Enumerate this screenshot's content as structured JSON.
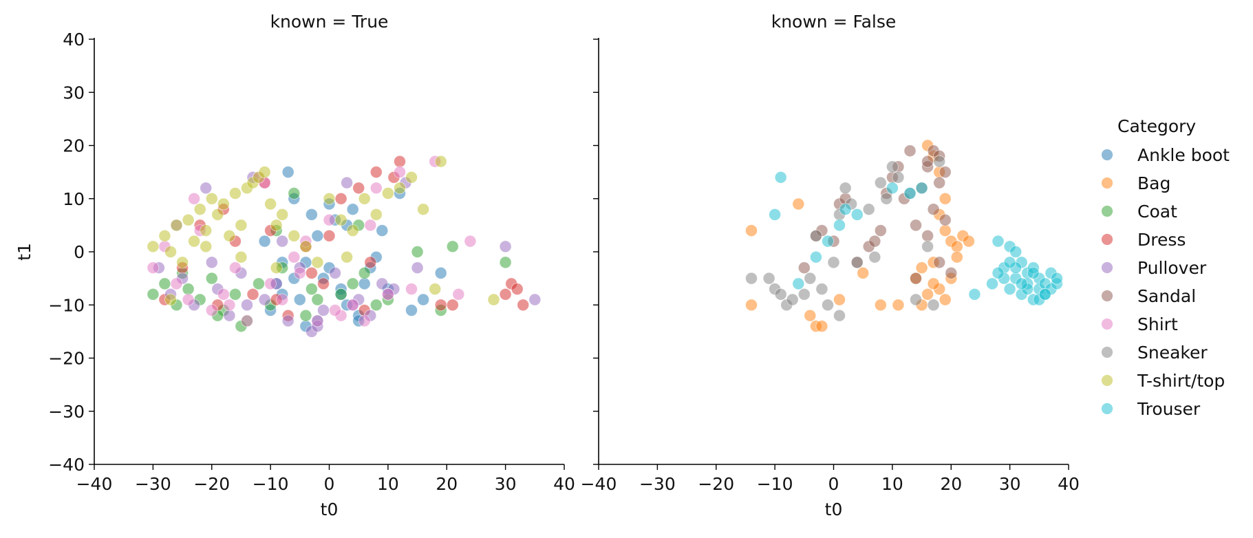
{
  "chart_data": [
    {
      "type": "scatter",
      "title": "known = True",
      "xlabel": "t0",
      "ylabel": "t1",
      "xlim": [
        -40,
        40
      ],
      "ylim": [
        -40,
        40
      ],
      "xticks": [
        "−40",
        "−30",
        "−20",
        "−10",
        "0",
        "10",
        "20",
        "30",
        "40"
      ],
      "yticks": [
        "−40",
        "−30",
        "−20",
        "−10",
        "0",
        "10",
        "20",
        "30",
        "40"
      ],
      "grid": false,
      "series": [
        {
          "name": "Ankle boot",
          "color": "#1f77b4",
          "x": [
            -9,
            -8,
            -10,
            -5,
            -4,
            -2,
            -1,
            0,
            2,
            3,
            5,
            -6,
            -3,
            1,
            4,
            7,
            -7,
            -2,
            3,
            8,
            16,
            19,
            12,
            6,
            -11,
            -4,
            2,
            -8,
            0,
            5,
            10,
            -6,
            9,
            14
          ],
          "y": [
            -6,
            -8,
            -11,
            -9,
            -2,
            -13,
            -5,
            -3,
            -7,
            -10,
            -12,
            10,
            7,
            6,
            8,
            -3,
            15,
            3,
            5,
            -1,
            -9,
            -4,
            11,
            -6,
            2,
            -14,
            -8,
            -2,
            9,
            -13,
            -7,
            -5,
            4,
            -11
          ]
        },
        {
          "name": "Coat",
          "color": "#2ca02c",
          "x": [
            -30,
            -28,
            -26,
            -24,
            -22,
            -20,
            -18,
            -16,
            -14,
            -12,
            -10,
            -8,
            -6,
            -4,
            -2,
            2,
            4,
            6,
            8,
            15,
            19,
            21,
            30,
            -25,
            -19,
            -15,
            -9,
            -3,
            5,
            10
          ],
          "y": [
            -8,
            -6,
            -10,
            -7,
            -9,
            -5,
            -11,
            -8,
            -13,
            -6,
            -10,
            -3,
            11,
            -12,
            -9,
            -8,
            -6,
            -4,
            -10,
            0,
            -11,
            1,
            -2,
            -4,
            -12,
            -14,
            4,
            -7,
            5,
            -9
          ]
        },
        {
          "name": "Dress",
          "color": "#d62728",
          "x": [
            -28,
            -25,
            -22,
            -19,
            -16,
            -13,
            -10,
            -7,
            -4,
            -1,
            2,
            5,
            8,
            12,
            19,
            21,
            30,
            31,
            32,
            33,
            -9,
            -3,
            6,
            11,
            -18,
            -11,
            0,
            7
          ],
          "y": [
            -9,
            -3,
            5,
            -10,
            2,
            -8,
            4,
            -12,
            1,
            -6,
            10,
            12,
            15,
            17,
            -10,
            -10,
            -8,
            -6,
            -7,
            -10,
            -9,
            -4,
            -11,
            14,
            8,
            13,
            3,
            -2
          ]
        },
        {
          "name": "Pullover",
          "color": "#9467bd",
          "x": [
            -29,
            -27,
            -25,
            -23,
            -21,
            -19,
            -17,
            -15,
            -13,
            -11,
            -9,
            -7,
            -5,
            -3,
            -1,
            1,
            3,
            5,
            7,
            9,
            11,
            13,
            15,
            30,
            35,
            -26,
            -20,
            -14,
            -8,
            -2,
            4,
            10
          ],
          "y": [
            -3,
            -8,
            -5,
            -10,
            12,
            -7,
            -12,
            -4,
            14,
            -9,
            -6,
            -13,
            -3,
            -15,
            -11,
            -4,
            13,
            -9,
            -12,
            -6,
            -7,
            13,
            -3,
            1,
            -9,
            5,
            -2,
            -10,
            2,
            -14,
            -10,
            -8
          ]
        },
        {
          "name": "Shirt",
          "color": "#e377c2",
          "x": [
            -30,
            -28,
            -26,
            -24,
            -22,
            -20,
            -18,
            -16,
            -14,
            -12,
            -10,
            -8,
            -6,
            -4,
            -2,
            0,
            2,
            4,
            6,
            8,
            10,
            12,
            14,
            18,
            22,
            24,
            -23,
            -17,
            -11,
            -5,
            1,
            7
          ],
          "y": [
            -3,
            1,
            -6,
            -9,
            4,
            -11,
            -8,
            -3,
            -13,
            14,
            -6,
            -9,
            -1,
            2,
            -13,
            6,
            -12,
            -10,
            -13,
            12,
            -8,
            15,
            -7,
            17,
            -8,
            2,
            10,
            -10,
            13,
            -4,
            -11,
            5
          ]
        },
        {
          "name": "T-shirt/top",
          "color": "#bcbd22",
          "x": [
            -30,
            -28,
            -27,
            -26,
            -25,
            -24,
            -23,
            -22,
            -21,
            -20,
            -19,
            -18,
            -17,
            -16,
            -15,
            -14,
            -13,
            -12,
            -11,
            -10,
            -9,
            -8,
            -6,
            -4,
            -2,
            0,
            2,
            4,
            6,
            8,
            10,
            12,
            14,
            16,
            18,
            19,
            28,
            -27,
            -21,
            -15,
            -9,
            3
          ],
          "y": [
            1,
            3,
            0,
            5,
            -2,
            6,
            2,
            8,
            4,
            10,
            7,
            9,
            3,
            11,
            5,
            12,
            13,
            14,
            15,
            9,
            5,
            7,
            3,
            1,
            -2,
            10,
            6,
            4,
            10,
            7,
            11,
            12,
            14,
            8,
            -7,
            17,
            -9,
            -9,
            1,
            -1,
            -3,
            -1
          ]
        }
      ]
    },
    {
      "type": "scatter",
      "title": "known = False",
      "xlabel": "t0",
      "ylabel": "",
      "xlim": [
        -40,
        40
      ],
      "ylim": [
        -40,
        40
      ],
      "xticks": [
        "−40",
        "−30",
        "−20",
        "−10",
        "0",
        "10",
        "20",
        "30",
        "40"
      ],
      "yticks": [],
      "grid": false,
      "series": [
        {
          "name": "Bag",
          "color": "#ff7f0e",
          "x": [
            -14,
            -14,
            -6,
            -4,
            -3,
            -2,
            1,
            5,
            8,
            11,
            14,
            15,
            16,
            16,
            17,
            17,
            18,
            18,
            19,
            19,
            19,
            20,
            20,
            21,
            21,
            22,
            23,
            15,
            18,
            17
          ],
          "y": [
            4,
            -10,
            9,
            -12,
            -14,
            -14,
            -9,
            -4,
            -10,
            -10,
            -5,
            -3,
            20,
            -8,
            18,
            -2,
            15,
            -7,
            4,
            10,
            -9,
            2,
            -5,
            1,
            -1,
            3,
            2,
            -10,
            7,
            -6
          ]
        },
        {
          "name": "Sandal",
          "color": "#8c564b",
          "x": [
            -5,
            -3,
            -2,
            0,
            1,
            2,
            4,
            6,
            7,
            8,
            9,
            10,
            11,
            12,
            13,
            14,
            15,
            16,
            16,
            17,
            17,
            18,
            18,
            19,
            19,
            20,
            14,
            16,
            18
          ],
          "y": [
            -3,
            3,
            4,
            2,
            9,
            10,
            -2,
            1,
            2,
            4,
            11,
            14,
            16,
            10,
            19,
            5,
            12,
            16,
            3,
            19,
            8,
            18,
            -2,
            15,
            6,
            -4,
            -5,
            17,
            13
          ]
        },
        {
          "name": "Sneaker",
          "color": "#7f7f7f",
          "x": [
            -14,
            -11,
            -10,
            -9,
            -8,
            -7,
            -5,
            -4,
            -3,
            -2,
            -1,
            0,
            1,
            1,
            2,
            3,
            4,
            6,
            7,
            8,
            9,
            10,
            11,
            13,
            14,
            16,
            17,
            18
          ],
          "y": [
            -5,
            -5,
            -7,
            -8,
            -10,
            -9,
            -8,
            -5,
            3,
            -7,
            -10,
            -2,
            -12,
            7,
            12,
            9,
            -2,
            8,
            -1,
            13,
            10,
            16,
            14,
            11,
            -9,
            1,
            -10,
            17
          ]
        },
        {
          "name": "Trouser",
          "color": "#17becf",
          "x": [
            -9,
            -10,
            -6,
            -3,
            -1,
            1,
            2,
            4,
            10,
            13,
            15,
            24,
            27,
            28,
            29,
            30,
            30,
            31,
            31,
            32,
            32,
            33,
            33,
            34,
            34,
            35,
            35,
            36,
            36,
            37,
            37,
            38,
            38,
            29,
            31,
            33,
            35,
            28,
            30,
            32,
            34,
            36
          ],
          "y": [
            14,
            7,
            -6,
            -1,
            2,
            5,
            8,
            7,
            12,
            11,
            12,
            -8,
            -6,
            2,
            -3,
            1,
            -7,
            0,
            -5,
            -2,
            -8,
            -4,
            -6,
            -3,
            -9,
            -5,
            -7,
            -6,
            -8,
            -4,
            -7,
            -6,
            -5,
            -5,
            -3,
            -7,
            -9,
            -4,
            -2,
            -6,
            -4,
            -8
          ]
        }
      ]
    }
  ],
  "legend": {
    "title": "Category",
    "placement": "right",
    "entries": [
      {
        "name": "Ankle boot",
        "color": "#1f77b4"
      },
      {
        "name": "Bag",
        "color": "#ff7f0e"
      },
      {
        "name": "Coat",
        "color": "#2ca02c"
      },
      {
        "name": "Dress",
        "color": "#d62728"
      },
      {
        "name": "Pullover",
        "color": "#9467bd"
      },
      {
        "name": "Sandal",
        "color": "#8c564b"
      },
      {
        "name": "Shirt",
        "color": "#e377c2"
      },
      {
        "name": "Sneaker",
        "color": "#7f7f7f"
      },
      {
        "name": "T-shirt/top",
        "color": "#bcbd22"
      },
      {
        "name": "Trouser",
        "color": "#17becf"
      }
    ]
  }
}
